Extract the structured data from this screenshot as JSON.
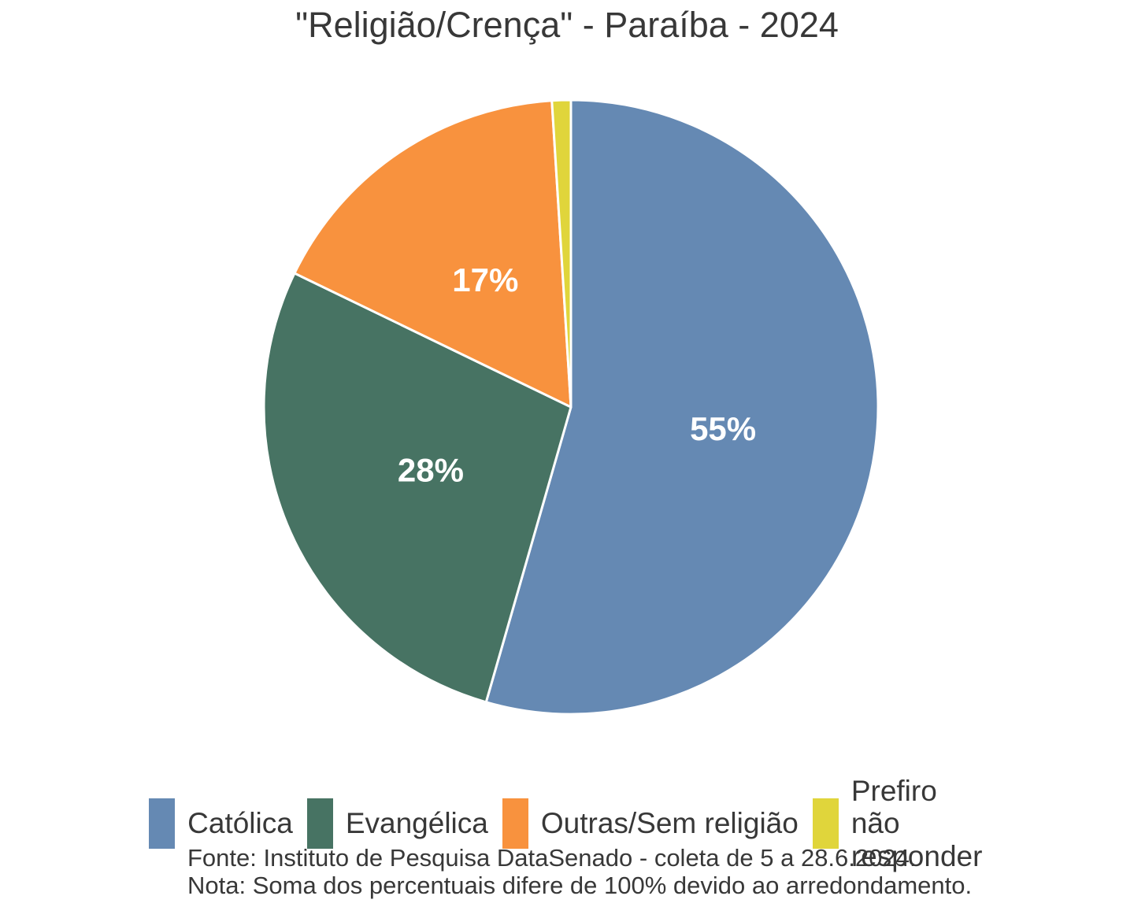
{
  "title": "\"Religião/Crença\" - Paraíba - 2024",
  "chart_data": {
    "type": "pie",
    "title": "\"Religião/Crença\" - Paraíba - 2024",
    "direction": "clockwise",
    "start_angle_deg": 0,
    "label_radius_ratio": 0.5,
    "slice_label_color": "#ffffff",
    "legend_position": "bottom",
    "categories": [
      "Católica",
      "Evangélica",
      "Outras/Sem religião",
      "Prefiro não responder"
    ],
    "values": [
      55,
      28,
      17,
      1
    ],
    "slices": [
      {
        "label": "Católica",
        "value": 55,
        "percent_label": "55%",
        "color": "#6589B3",
        "show_percent_label": true
      },
      {
        "label": "Evangélica",
        "value": 28,
        "percent_label": "28%",
        "color": "#477363",
        "show_percent_label": true
      },
      {
        "label": "Outras/Sem religião",
        "value": 17,
        "percent_label": "17%",
        "color": "#F8923E",
        "show_percent_label": true
      },
      {
        "label": "Prefiro não responder",
        "value": 1,
        "percent_label": "1%",
        "color": "#E0D53B",
        "show_percent_label": false
      }
    ]
  },
  "footer": {
    "line1": "Fonte: Instituto de Pesquisa DataSenado - coleta de 5 a 28.6.2024.",
    "line2": "Nota: Soma dos percentuais difere de 100% devido ao arredondamento."
  }
}
